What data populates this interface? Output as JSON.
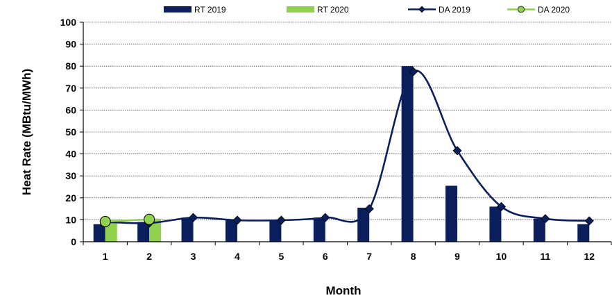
{
  "chart_data": {
    "type": "bar",
    "title": "",
    "xlabel": "Month",
    "ylabel": "Heat Rate (MBtu/MWh)",
    "categories": [
      "1",
      "2",
      "3",
      "4",
      "5",
      "6",
      "7",
      "8",
      "9",
      "10",
      "11",
      "12"
    ],
    "ylim": [
      0,
      100
    ],
    "yticks": [
      "0",
      "10",
      "20",
      "30",
      "40",
      "50",
      "60",
      "70",
      "80",
      "90",
      "100"
    ],
    "grid": true,
    "legend_position": "top",
    "series": [
      {
        "name": "RT 2019",
        "kind": "bar",
        "color": "#0b1f5c",
        "values": [
          8,
          9,
          11,
          10,
          10,
          11,
          15.5,
          80,
          25.5,
          16,
          10.5,
          8
        ]
      },
      {
        "name": "RT 2020",
        "kind": "bar",
        "color": "#92d050",
        "values": [
          10,
          10.5,
          null,
          null,
          null,
          null,
          null,
          null,
          null,
          null,
          null,
          null
        ]
      },
      {
        "name": "DA 2019",
        "kind": "line",
        "marker": "diamond",
        "color": "#0b1f5c",
        "values": [
          9,
          8.5,
          11,
          9.8,
          9.8,
          11,
          15,
          77.5,
          41.5,
          16,
          10.5,
          9.5
        ]
      },
      {
        "name": "DA 2020",
        "kind": "line",
        "marker": "circle",
        "color": "#92d050",
        "values": [
          9.2,
          10.2,
          null,
          null,
          null,
          null,
          null,
          null,
          null,
          null,
          null,
          null
        ]
      }
    ]
  }
}
